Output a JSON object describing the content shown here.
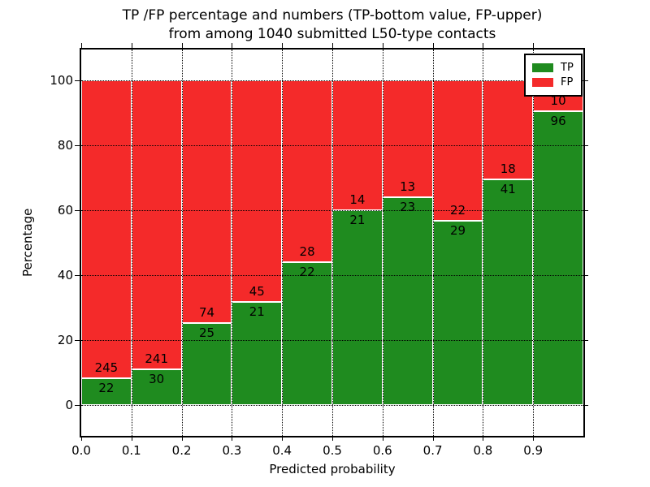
{
  "figure": {
    "kind": "matplotlib-style static chart image"
  },
  "chart_data": {
    "type": "bar",
    "stacked": true,
    "normalized_to_percent": true,
    "title_lines": [
      "TP /FP percentage and numbers (TP-bottom value, FP-upper)",
      "from among 1040 submitted L50-type contacts"
    ],
    "xlabel": "Predicted probability",
    "ylabel": "Percentage",
    "categories": [
      "0.0-0.1",
      "0.1-0.2",
      "0.2-0.3",
      "0.3-0.4",
      "0.4-0.5",
      "0.5-0.6",
      "0.6-0.7",
      "0.7-0.8",
      "0.8-0.9",
      "0.9-1.0"
    ],
    "series": [
      {
        "name": "TP",
        "color": "#1f8b1f",
        "values": [
          22,
          30,
          25,
          21,
          22,
          21,
          23,
          29,
          41,
          96
        ]
      },
      {
        "name": "FP",
        "color": "#f42a2a",
        "values": [
          245,
          241,
          74,
          45,
          28,
          14,
          13,
          22,
          18,
          10
        ]
      }
    ],
    "total_contacts": 1040,
    "xticks": {
      "values": [
        0.0,
        0.1,
        0.2,
        0.3,
        0.4,
        0.5,
        0.6,
        0.7,
        0.8,
        0.9
      ],
      "labels": [
        "0.0",
        "0.1",
        "0.2",
        "0.3",
        "0.4",
        "0.5",
        "0.6",
        "0.7",
        "0.8",
        "0.9"
      ]
    },
    "yticks": {
      "values": [
        0,
        20,
        40,
        60,
        80,
        100
      ],
      "labels": [
        "0",
        "20",
        "40",
        "60",
        "80",
        "100"
      ]
    },
    "xlim": [
      0.0,
      1.0
    ],
    "ylim": [
      -10,
      110
    ],
    "grid": "dotted",
    "bar_edge_color": "#ffffff",
    "legend_position": "upper right",
    "legend_entries": [
      "TP",
      "FP"
    ]
  }
}
